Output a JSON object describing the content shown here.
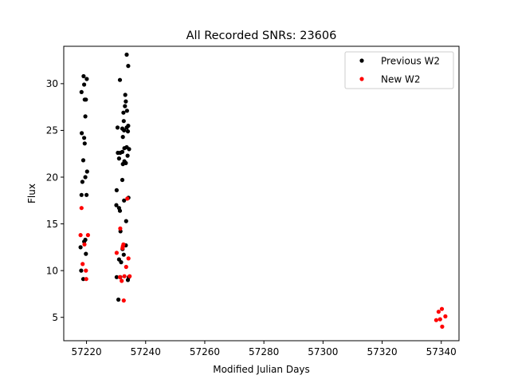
{
  "chart_data": {
    "type": "scatter",
    "title": "All Recorded SNRs: 23606",
    "xlabel": "Modified Julian Days",
    "ylabel": "Flux",
    "xlim": [
      57212.3,
      57346.0
    ],
    "ylim": [
      2.5,
      34.0
    ],
    "xticks": [
      57220,
      57240,
      57260,
      57280,
      57300,
      57320,
      57340
    ],
    "yticks": [
      5,
      10,
      15,
      20,
      25,
      30
    ],
    "grid": false,
    "legend_position": "top-right",
    "series": [
      {
        "name": "Previous W2",
        "color": "#000000",
        "points": [
          [
            57218.3,
            29.1
          ],
          [
            57219.0,
            30.8
          ],
          [
            57219.2,
            29.9
          ],
          [
            57219.4,
            28.3
          ],
          [
            57219.8,
            28.3
          ],
          [
            57220.1,
            30.5
          ],
          [
            57219.6,
            26.5
          ],
          [
            57218.4,
            24.7
          ],
          [
            57219.2,
            24.2
          ],
          [
            57219.4,
            23.6
          ],
          [
            57218.9,
            21.8
          ],
          [
            57220.2,
            20.6
          ],
          [
            57219.6,
            20.0
          ],
          [
            57218.6,
            19.5
          ],
          [
            57218.3,
            18.1
          ],
          [
            57220.0,
            18.1
          ],
          [
            57218.0,
            12.5
          ],
          [
            57219.6,
            13.3
          ],
          [
            57219.2,
            13.1
          ],
          [
            57219.8,
            11.8
          ],
          [
            57218.2,
            10.0
          ],
          [
            57218.9,
            9.1
          ],
          [
            57230.5,
            25.3
          ],
          [
            57231.3,
            30.4
          ],
          [
            57233.6,
            33.1
          ],
          [
            57234.1,
            31.9
          ],
          [
            57233.1,
            28.8
          ],
          [
            57233.3,
            28.1
          ],
          [
            57233.0,
            27.6
          ],
          [
            57233.7,
            27.1
          ],
          [
            57232.5,
            26.9
          ],
          [
            57232.6,
            26.0
          ],
          [
            57232.1,
            25.2
          ],
          [
            57232.7,
            25.0
          ],
          [
            57233.6,
            25.3
          ],
          [
            57234.1,
            25.5
          ],
          [
            57234.0,
            24.9
          ],
          [
            57232.3,
            24.3
          ],
          [
            57232.8,
            23.1
          ],
          [
            57233.6,
            23.2
          ],
          [
            57234.4,
            23.0
          ],
          [
            57230.6,
            22.6
          ],
          [
            57231.4,
            22.6
          ],
          [
            57232.1,
            22.7
          ],
          [
            57233.9,
            22.3
          ],
          [
            57231.0,
            22.0
          ],
          [
            57232.8,
            21.7
          ],
          [
            57233.3,
            21.5
          ],
          [
            57232.3,
            21.4
          ],
          [
            57232.1,
            19.7
          ],
          [
            57230.2,
            18.6
          ],
          [
            57234.2,
            17.8
          ],
          [
            57232.7,
            17.5
          ],
          [
            57230.1,
            17.0
          ],
          [
            57231.0,
            16.7
          ],
          [
            57231.3,
            16.4
          ],
          [
            57233.4,
            15.3
          ],
          [
            57231.5,
            14.2
          ],
          [
            57232.2,
            12.3
          ],
          [
            57233.3,
            12.7
          ],
          [
            57232.6,
            11.7
          ],
          [
            57231.0,
            11.2
          ],
          [
            57231.7,
            10.9
          ],
          [
            57230.2,
            9.3
          ],
          [
            57231.4,
            9.3
          ],
          [
            57234.3,
            9.3
          ],
          [
            57234.0,
            9.0
          ],
          [
            57230.8,
            6.9
          ]
        ]
      },
      {
        "name": "New W2",
        "color": "#ff0000",
        "points": [
          [
            57218.3,
            16.7
          ],
          [
            57218.0,
            13.8
          ],
          [
            57220.5,
            13.8
          ],
          [
            57219.3,
            12.8
          ],
          [
            57218.7,
            10.7
          ],
          [
            57219.8,
            10.0
          ],
          [
            57219.9,
            9.1
          ],
          [
            57230.2,
            11.9
          ],
          [
            57231.4,
            14.5
          ],
          [
            57233.8,
            17.7
          ],
          [
            57232.3,
            12.6
          ],
          [
            57232.5,
            12.8
          ],
          [
            57232.2,
            12.4
          ],
          [
            57234.2,
            11.3
          ],
          [
            57233.4,
            10.4
          ],
          [
            57231.3,
            9.3
          ],
          [
            57231.9,
            8.9
          ],
          [
            57232.8,
            9.4
          ],
          [
            57234.6,
            9.4
          ],
          [
            57232.6,
            6.8
          ],
          [
            57338.3,
            4.7
          ],
          [
            57339.1,
            5.6
          ],
          [
            57339.6,
            4.8
          ],
          [
            57340.2,
            5.9
          ],
          [
            57341.4,
            5.1
          ],
          [
            57340.3,
            4.0
          ]
        ]
      }
    ]
  }
}
